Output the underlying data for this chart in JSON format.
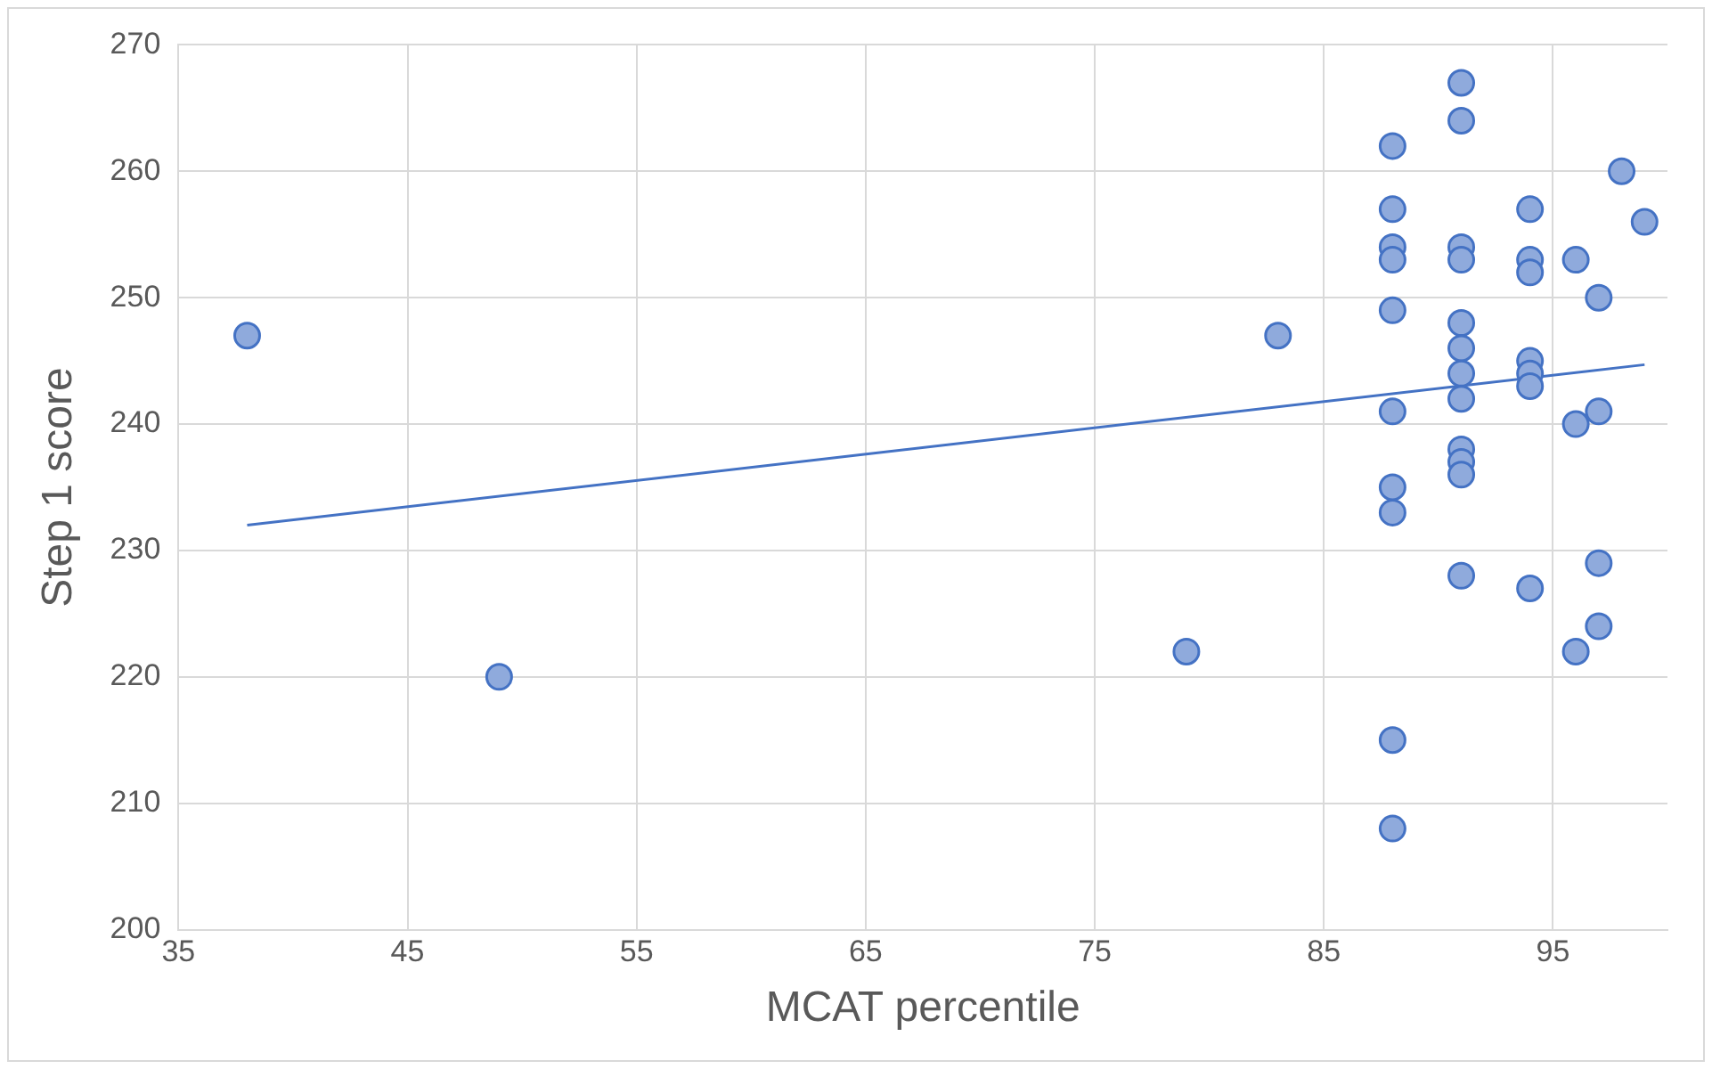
{
  "chart_data": {
    "type": "scatter",
    "xlabel": "MCAT percentile",
    "ylabel": "Step 1 score",
    "xlim": [
      35,
      100
    ],
    "xticks": [
      35,
      45,
      55,
      65,
      75,
      85,
      95
    ],
    "ylim": [
      200,
      270
    ],
    "yticks": [
      200,
      210,
      220,
      230,
      240,
      250,
      260,
      270
    ],
    "grid": true,
    "marker": "circle",
    "legend": false,
    "series": [
      {
        "color": "#8faadc",
        "x": [
          38,
          49,
          79,
          83,
          88,
          88,
          88,
          88,
          88,
          88,
          88,
          88,
          88,
          88,
          91,
          91,
          91,
          91,
          91,
          91,
          91,
          91,
          91,
          91,
          91,
          91,
          94,
          94,
          94,
          94,
          94,
          94,
          94,
          96,
          96,
          96,
          97,
          97,
          97,
          97,
          98,
          99
        ],
        "values": [
          247,
          220,
          222,
          247,
          262,
          257,
          254,
          253,
          249,
          241,
          235,
          233,
          215,
          208,
          267,
          264,
          254,
          253,
          248,
          246,
          244,
          242,
          238,
          237,
          236,
          228,
          257,
          253,
          252,
          245,
          244,
          243,
          227,
          253,
          240,
          222,
          250,
          241,
          229,
          224,
          260,
          256
        ]
      },
      {
        "type": "line",
        "color": "#4472c4",
        "marker": "none",
        "x": [
          38,
          99
        ],
        "values": [
          232,
          244.7
        ]
      }
    ]
  }
}
